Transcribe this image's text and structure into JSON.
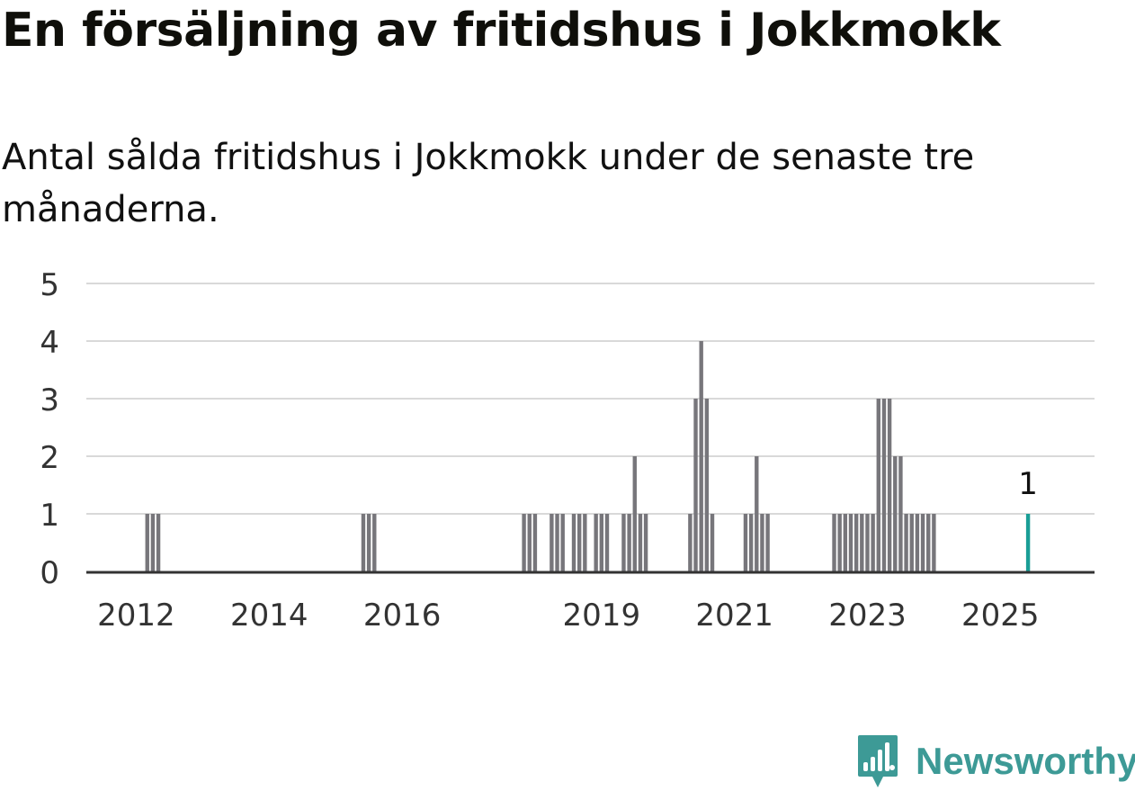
{
  "title": "En försäljning av fritidshus i Jokkmokk",
  "subtitle": "Antal sålda fritidshus i Jokkmokk under de senaste tre månaderna.",
  "brand": {
    "name": "Newsworthy"
  },
  "colors": {
    "bar": "#77767b",
    "highlight": "#1a9e96",
    "grid": "#d9d9d9",
    "axis": "#333333",
    "brand": "#3d9a96"
  },
  "chart_data": {
    "type": "bar",
    "title": "En försäljning av fritidshus i Jokkmokk",
    "subtitle": "Antal sålda fritidshus i Jokkmokk under de senaste tre månaderna.",
    "xlabel": "",
    "ylabel": "",
    "ylim": [
      0,
      5
    ],
    "yticks": [
      0,
      1,
      2,
      3,
      4,
      5
    ],
    "x_unit": "month",
    "xlim": [
      "2011-04",
      "2026-06"
    ],
    "xticks": [
      {
        "label": "2012",
        "date": "2012-01"
      },
      {
        "label": "2014",
        "date": "2014-01"
      },
      {
        "label": "2016",
        "date": "2016-01"
      },
      {
        "label": "2019",
        "date": "2019-01"
      },
      {
        "label": "2021",
        "date": "2021-01"
      },
      {
        "label": "2023",
        "date": "2023-01"
      },
      {
        "label": "2025",
        "date": "2025-01"
      }
    ],
    "grid": true,
    "legend": "none",
    "series": [
      {
        "points": [
          [
            "2012-03",
            1
          ],
          [
            "2012-04",
            1
          ],
          [
            "2012-05",
            1
          ],
          [
            "2015-06",
            1
          ],
          [
            "2015-07",
            1
          ],
          [
            "2015-08",
            1
          ],
          [
            "2017-11",
            1
          ],
          [
            "2017-12",
            1
          ],
          [
            "2018-01",
            1
          ],
          [
            "2018-04",
            1
          ],
          [
            "2018-05",
            1
          ],
          [
            "2018-06",
            1
          ],
          [
            "2018-08",
            1
          ],
          [
            "2018-09",
            1
          ],
          [
            "2018-10",
            1
          ],
          [
            "2018-12",
            1
          ],
          [
            "2019-01",
            1
          ],
          [
            "2019-02",
            1
          ],
          [
            "2019-05",
            1
          ],
          [
            "2019-06",
            1
          ],
          [
            "2019-07",
            2
          ],
          [
            "2019-08",
            1
          ],
          [
            "2019-09",
            1
          ],
          [
            "2020-05",
            1
          ],
          [
            "2020-06",
            3
          ],
          [
            "2020-07",
            4
          ],
          [
            "2020-08",
            3
          ],
          [
            "2020-09",
            1
          ],
          [
            "2021-03",
            1
          ],
          [
            "2021-04",
            1
          ],
          [
            "2021-05",
            2
          ],
          [
            "2021-06",
            1
          ],
          [
            "2021-07",
            1
          ],
          [
            "2022-07",
            1
          ],
          [
            "2022-08",
            1
          ],
          [
            "2022-09",
            1
          ],
          [
            "2022-10",
            1
          ],
          [
            "2022-11",
            1
          ],
          [
            "2022-12",
            1
          ],
          [
            "2023-01",
            1
          ],
          [
            "2023-02",
            1
          ],
          [
            "2023-03",
            3
          ],
          [
            "2023-04",
            3
          ],
          [
            "2023-05",
            3
          ],
          [
            "2023-06",
            2
          ],
          [
            "2023-07",
            2
          ],
          [
            "2023-08",
            1
          ],
          [
            "2023-09",
            1
          ],
          [
            "2023-10",
            1
          ],
          [
            "2023-11",
            1
          ],
          [
            "2023-12",
            1
          ],
          [
            "2024-01",
            1
          ]
        ]
      },
      {
        "highlight": true,
        "points": [
          [
            "2025-06",
            1
          ]
        ],
        "data_label": "1"
      }
    ]
  }
}
